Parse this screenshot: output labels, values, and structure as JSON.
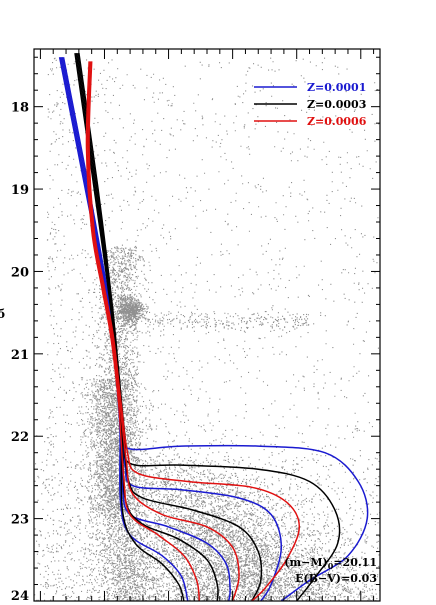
{
  "chart_data": {
    "type": "scatter",
    "title": "",
    "xlabel": "",
    "ylabel": "",
    "ylabel_visible_fragment": "б",
    "y_inverted": true,
    "ylim": [
      17.3,
      24.0
    ],
    "xlim": [
      -0.55,
      2.15
    ],
    "y_ticks": [
      18,
      19,
      20,
      21,
      22,
      23,
      24
    ],
    "y_tick_labels": [
      "18",
      "19",
      "20",
      "21",
      "22",
      "23",
      "24"
    ],
    "grid": false,
    "legend_position": "top-right",
    "background_points": {
      "color": "#909090",
      "description_components": [
        {
          "component": "main-sequence / subgiant",
          "x_center": 1.03,
          "y_range": [
            22.2,
            24.0
          ],
          "density": "very high"
        },
        {
          "component": "red giant branch",
          "x_center": "0.05 to 0.65",
          "y_range": [
            19.8,
            23.0
          ],
          "density": "high"
        },
        {
          "component": "red clump",
          "x_center": 0.2,
          "y_center": 20.5,
          "density": "high"
        },
        {
          "component": "horizontal branch",
          "x_range": [
            0.3,
            1.6
          ],
          "y_center": 20.6,
          "density": "low"
        },
        {
          "component": "field stars",
          "x_range": [
            -0.55,
            2.15
          ],
          "y_range": [
            17.3,
            24.0
          ],
          "density": "low"
        }
      ]
    },
    "series": [
      {
        "name": "Z=0.0001",
        "color": "#1a1ad0",
        "isochrones": [
          [
            [
              -0.32,
              17.4
            ],
            [
              -0.12,
              19.0
            ],
            [
              0.04,
              20.4
            ],
            [
              0.1,
              21.2
            ],
            [
              0.14,
              21.9
            ],
            [
              0.19,
              22.15
            ],
            [
              0.6,
              22.12
            ],
            [
              1.2,
              22.12
            ],
            [
              1.72,
              22.2
            ],
            [
              1.98,
              22.55
            ],
            [
              2.05,
              23.0
            ],
            [
              1.9,
              23.45
            ],
            [
              1.6,
              23.75
            ],
            [
              1.38,
              24.0
            ]
          ],
          [
            [
              -0.33,
              17.4
            ],
            [
              -0.13,
              19.0
            ],
            [
              0.035,
              20.4
            ],
            [
              0.095,
              21.2
            ],
            [
              0.135,
              21.9
            ],
            [
              0.16,
              22.35
            ],
            [
              0.22,
              22.6
            ],
            [
              0.6,
              22.65
            ],
            [
              1.05,
              22.75
            ],
            [
              1.3,
              22.95
            ],
            [
              1.38,
              23.35
            ],
            [
              1.3,
              23.8
            ],
            [
              1.22,
              24.0
            ]
          ],
          [
            [
              -0.34,
              17.4
            ],
            [
              -0.14,
              19.0
            ],
            [
              0.03,
              20.4
            ],
            [
              0.09,
              21.2
            ],
            [
              0.13,
              21.9
            ],
            [
              0.14,
              22.6
            ],
            [
              0.2,
              22.95
            ],
            [
              0.5,
              23.1
            ],
            [
              0.8,
              23.3
            ],
            [
              0.95,
              23.55
            ],
            [
              0.98,
              23.85
            ],
            [
              0.97,
              24.0
            ]
          ],
          [
            [
              -0.35,
              17.4
            ],
            [
              -0.15,
              19.0
            ],
            [
              0.025,
              20.4
            ],
            [
              0.085,
              21.2
            ],
            [
              0.12,
              21.9
            ],
            [
              0.125,
              22.8
            ],
            [
              0.2,
              23.2
            ],
            [
              0.45,
              23.45
            ],
            [
              0.6,
              23.7
            ],
            [
              0.65,
              24.0
            ]
          ]
        ]
      },
      {
        "name": "Z=0.0003",
        "color": "#000000",
        "isochrones": [
          [
            [
              -0.2,
              17.35
            ],
            [
              -0.05,
              19.0
            ],
            [
              0.06,
              20.4
            ],
            [
              0.11,
              21.2
            ],
            [
              0.16,
              22.0
            ],
            [
              0.2,
              22.33
            ],
            [
              0.6,
              22.35
            ],
            [
              1.2,
              22.4
            ],
            [
              1.6,
              22.55
            ],
            [
              1.8,
              22.9
            ],
            [
              1.82,
              23.3
            ],
            [
              1.65,
              23.7
            ],
            [
              1.5,
              24.0
            ]
          ],
          [
            [
              -0.21,
              17.35
            ],
            [
              -0.06,
              19.0
            ],
            [
              0.055,
              20.4
            ],
            [
              0.105,
              21.2
            ],
            [
              0.15,
              22.0
            ],
            [
              0.19,
              22.55
            ],
            [
              0.3,
              22.75
            ],
            [
              0.7,
              22.9
            ],
            [
              1.05,
              23.1
            ],
            [
              1.2,
              23.4
            ],
            [
              1.22,
              23.75
            ],
            [
              1.15,
              24.0
            ]
          ],
          [
            [
              -0.22,
              17.35
            ],
            [
              -0.07,
              19.0
            ],
            [
              0.05,
              20.4
            ],
            [
              0.1,
              21.2
            ],
            [
              0.14,
              22.0
            ],
            [
              0.16,
              22.75
            ],
            [
              0.28,
              23.05
            ],
            [
              0.58,
              23.25
            ],
            [
              0.8,
              23.5
            ],
            [
              0.88,
              23.8
            ],
            [
              0.88,
              24.0
            ]
          ],
          [
            [
              -0.23,
              17.35
            ],
            [
              -0.08,
              19.0
            ],
            [
              0.045,
              20.4
            ],
            [
              0.095,
              21.2
            ],
            [
              0.13,
              22.0
            ],
            [
              0.14,
              22.9
            ],
            [
              0.24,
              23.3
            ],
            [
              0.45,
              23.55
            ],
            [
              0.58,
              23.8
            ],
            [
              0.62,
              24.0
            ]
          ]
        ]
      },
      {
        "name": "Z=0.0006",
        "color": "#e01010",
        "isochrones": [
          [
            [
              -0.1,
              17.45
            ],
            [
              -0.12,
              18.5
            ],
            [
              -0.08,
              19.5
            ],
            [
              0.0,
              20.2
            ],
            [
              0.07,
              20.8
            ],
            [
              0.13,
              21.6
            ],
            [
              0.18,
              22.2
            ],
            [
              0.26,
              22.45
            ],
            [
              0.65,
              22.55
            ],
            [
              1.15,
              22.62
            ],
            [
              1.42,
              22.8
            ],
            [
              1.52,
              23.1
            ],
            [
              1.42,
              23.5
            ],
            [
              1.25,
              23.85
            ],
            [
              1.15,
              24.0
            ]
          ],
          [
            [
              -0.11,
              17.45
            ],
            [
              -0.13,
              18.5
            ],
            [
              -0.09,
              19.5
            ],
            [
              -0.01,
              20.2
            ],
            [
              0.06,
              20.8
            ],
            [
              0.12,
              21.6
            ],
            [
              0.17,
              22.3
            ],
            [
              0.22,
              22.7
            ],
            [
              0.45,
              22.95
            ],
            [
              0.8,
              23.1
            ],
            [
              1.0,
              23.35
            ],
            [
              1.05,
              23.7
            ],
            [
              1.0,
              24.0
            ]
          ],
          [
            [
              -0.12,
              17.45
            ],
            [
              -0.14,
              18.5
            ],
            [
              -0.1,
              19.5
            ],
            [
              -0.02,
              20.2
            ],
            [
              0.05,
              20.8
            ],
            [
              0.11,
              21.6
            ],
            [
              0.15,
              22.5
            ],
            [
              0.2,
              22.95
            ],
            [
              0.42,
              23.2
            ],
            [
              0.62,
              23.45
            ],
            [
              0.72,
              23.75
            ],
            [
              0.74,
              24.0
            ]
          ]
        ]
      }
    ],
    "annotations": [
      {
        "text_pre": "(m−M)",
        "text_sub": "0",
        "text_post": "=20.11",
        "position": "bottom-right"
      },
      {
        "text": "E(B−V)=0.03",
        "position": "bottom-right"
      }
    ]
  }
}
